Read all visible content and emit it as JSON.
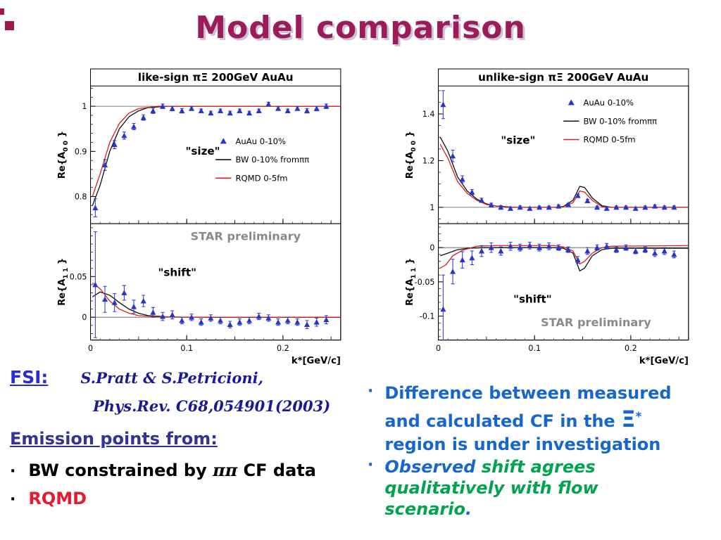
{
  "slide": {
    "title": "Model comparison"
  },
  "colors": {
    "title": "#9e1b5a",
    "fsi_blue": "#2b2bd4",
    "ref_navy": "#1a1a96",
    "emission": "#333392",
    "rqmd": "#e8192c",
    "right_blue": "#1566cf",
    "green": "#00a34e",
    "data_blue": "#2a35c8",
    "bw_black": "#111111",
    "rqmd_line": "#d42020",
    "star_gray": "#8a8a8a"
  },
  "left_text": {
    "fsi_label": "FSI:",
    "fsi_ref_line1": "S.Pratt & S.Petricioni,",
    "fsi_ref_line2": "Phys.Rev. C68,054901(2003)",
    "emission_heading": "Emission points from:",
    "bullet_char": "·",
    "bullet1_segments": [
      {
        "t": "BW constrained by "
      },
      {
        "t": "ππ",
        "serif": true
      },
      {
        "t": " CF data"
      }
    ],
    "bullet2": "RQMD"
  },
  "right_text": {
    "bullet_char": "·",
    "bullet1_segments": [
      {
        "t": "Difference between measured and calculated CF in the "
      },
      {
        "t": "Ξ",
        "big": true
      },
      {
        "t": "*",
        "sup": true
      },
      {
        "t": " region is under investigation"
      }
    ],
    "bullet2_segments": [
      {
        "t": "Observed ",
        "c": "#1566cf"
      },
      {
        "t": "shift agrees qualitatively with flow scenario",
        "c": "#00a34e"
      },
      {
        "t": ".",
        "c": "#1566cf"
      }
    ]
  },
  "chart_data": [
    {
      "type": "line",
      "title": "like-sign πΞ   200GeV AuAu",
      "xlabel": "k*[GeV/c]",
      "xlim": [
        0,
        0.26
      ],
      "xticks": [
        0,
        0.1,
        0.2
      ],
      "xtick_labels": [
        "0",
        "0.1",
        "0.2"
      ],
      "x_medium": 0.05,
      "x_minor": 0.01,
      "point_color": "#2a35c8",
      "panels": [
        {
          "ylabel_pre": "Re{A",
          "ylabel_sub": "0 0",
          "ylabel_post": " }",
          "ylim": [
            0.74,
            1.045
          ],
          "yticks": [
            0.8,
            0.9,
            1
          ],
          "ytick_labels": [
            "0.8",
            "0.9",
            "1"
          ],
          "y_minor": 0.02,
          "ref_line": 1,
          "label": "\"size\"",
          "label_fx": 0.38,
          "label_fy": 0.5,
          "legend": {
            "fx": 0.5,
            "fy": 0.36,
            "items": [
              {
                "marker": "triangle",
                "color": "#2a35c8",
                "label": "AuAu 0-10%"
              },
              {
                "marker": "line",
                "color": "#111111",
                "label": "BW 0-10%  fromππ"
              },
              {
                "marker": "line",
                "color": "#d42020",
                "label": "RQMD 0-5fm"
              }
            ]
          },
          "points": {
            "x": [
              0.005,
              0.015,
              0.025,
              0.035,
              0.045,
              0.055,
              0.065,
              0.075,
              0.085,
              0.095,
              0.105,
              0.115,
              0.125,
              0.135,
              0.145,
              0.155,
              0.165,
              0.175,
              0.185,
              0.195,
              0.205,
              0.215,
              0.225,
              0.235,
              0.245
            ],
            "y": [
              0.775,
              0.87,
              0.915,
              0.935,
              0.955,
              0.975,
              0.99,
              1.0,
              0.995,
              0.99,
              0.995,
              0.99,
              0.985,
              0.99,
              0.985,
              0.99,
              0.985,
              0.99,
              1.005,
              0.995,
              0.99,
              0.995,
              0.99,
              0.995,
              1.0
            ],
            "err": [
              0.02,
              0.012,
              0.009,
              0.008,
              0.007,
              0.006,
              0.006,
              0.005,
              0.005,
              0.005,
              0.004,
              0.004,
              0.004,
              0.004,
              0.004,
              0.004,
              0.004,
              0.004,
              0.004,
              0.004,
              0.004,
              0.004,
              0.005,
              0.005,
              0.005
            ]
          },
          "lines": [
            {
              "name": "BW 0-10%",
              "color": "#111111",
              "x": [
                0.002,
                0.01,
                0.02,
                0.03,
                0.04,
                0.05,
                0.06,
                0.08,
                0.1,
                0.26
              ],
              "y": [
                0.78,
                0.825,
                0.9,
                0.95,
                0.977,
                0.99,
                0.997,
                1.0,
                1.0,
                1.0
              ]
            },
            {
              "name": "RQMD 0-5fm",
              "color": "#d42020",
              "x": [
                0.002,
                0.01,
                0.02,
                0.03,
                0.04,
                0.05,
                0.07,
                0.26
              ],
              "y": [
                0.8,
                0.85,
                0.92,
                0.962,
                0.985,
                0.995,
                1.0,
                1.0
              ]
            }
          ]
        },
        {
          "ylabel_pre": "Re{A",
          "ylabel_sub": "1 1",
          "ylabel_post": " }",
          "ylim": [
            -0.028,
            0.115
          ],
          "yticks": [
            0,
            0.05
          ],
          "ytick_labels": [
            "0",
            "0.05"
          ],
          "y_minor": 0.01,
          "ref_line": 0,
          "label": "\"shift\"",
          "label_fx": 0.27,
          "label_fy": 0.45,
          "watermark": {
            "text": "STAR preliminary",
            "fx": 0.62,
            "fy": 0.14
          },
          "points": {
            "x": [
              0.005,
              0.015,
              0.025,
              0.035,
              0.045,
              0.055,
              0.065,
              0.075,
              0.085,
              0.095,
              0.105,
              0.115,
              0.125,
              0.135,
              0.145,
              0.155,
              0.165,
              0.175,
              0.185,
              0.195,
              0.205,
              0.215,
              0.225,
              0.235,
              0.245
            ],
            "y": [
              0.04,
              0.022,
              0.018,
              0.03,
              0.013,
              0.02,
              0.006,
              0.001,
              0.003,
              -0.004,
              0.0,
              -0.006,
              -0.001,
              -0.004,
              -0.009,
              -0.006,
              -0.004,
              0.001,
              -0.001,
              -0.006,
              -0.004,
              -0.006,
              -0.009,
              -0.006,
              -0.003
            ],
            "err": [
              0.065,
              0.016,
              0.011,
              0.009,
              0.008,
              0.007,
              0.006,
              0.005,
              0.005,
              0.004,
              0.004,
              0.004,
              0.004,
              0.004,
              0.004,
              0.004,
              0.004,
              0.004,
              0.004,
              0.004,
              0.004,
              0.004,
              0.005,
              0.005,
              0.005
            ]
          },
          "lines": [
            {
              "name": "BW 0-10%",
              "color": "#111111",
              "x": [
                0.002,
                0.01,
                0.02,
                0.03,
                0.04,
                0.05,
                0.06,
                0.08,
                0.1,
                0.26
              ],
              "y": [
                0.025,
                0.031,
                0.027,
                0.018,
                0.01,
                0.005,
                0.002,
                0.0005,
                0,
                0
              ]
            },
            {
              "name": "RQMD 0-5fm",
              "color": "#d42020",
              "x": [
                0.002,
                0.01,
                0.02,
                0.03,
                0.04,
                0.05,
                0.07,
                0.1,
                0.26
              ],
              "y": [
                0.042,
                0.035,
                0.02,
                0.01,
                0.005,
                0.002,
                0.0005,
                0,
                0
              ]
            }
          ]
        }
      ]
    },
    {
      "type": "line",
      "title": "unlike-sign πΞ   200GeV AuAu",
      "xlabel": "k*[GeV/c]",
      "xlim": [
        0,
        0.26
      ],
      "xticks": [
        0,
        0.1,
        0.2
      ],
      "xtick_labels": [
        "0",
        "0.1",
        "0.2"
      ],
      "x_medium": 0.05,
      "x_minor": 0.01,
      "point_color": "#2a35c8",
      "panels": [
        {
          "ylabel_pre": "Re{A",
          "ylabel_sub": "0 0",
          "ylabel_post": " }",
          "ylim": [
            0.93,
            1.52
          ],
          "yticks": [
            1,
            1.2,
            1.4
          ],
          "ytick_labels": [
            "1",
            "1.2",
            "1.4"
          ],
          "y_minor": 0.05,
          "ref_line": 1,
          "label": "\"size\"",
          "label_fx": 0.25,
          "label_fy": 0.42,
          "legend": {
            "fx": 0.5,
            "fy": 0.08,
            "items": [
              {
                "marker": "triangle",
                "color": "#2a35c8",
                "label": "AuAu 0-10%"
              },
              {
                "marker": "line",
                "color": "#111111",
                "label": "BW 0-10%  fromππ"
              },
              {
                "marker": "line",
                "color": "#d42020",
                "label": "RQMD 0-5fm"
              }
            ]
          },
          "points": {
            "x": [
              0.005,
              0.015,
              0.025,
              0.035,
              0.045,
              0.055,
              0.065,
              0.075,
              0.085,
              0.095,
              0.105,
              0.115,
              0.125,
              0.135,
              0.145,
              0.155,
              0.165,
              0.175,
              0.185,
              0.195,
              0.205,
              0.215,
              0.225,
              0.235,
              0.245
            ],
            "y": [
              1.44,
              1.22,
              1.12,
              1.065,
              1.03,
              1.01,
              1.0,
              0.995,
              1.0,
              0.995,
              1.0,
              1.0,
              1.005,
              1.012,
              1.05,
              1.028,
              1.0,
              0.995,
              1.0,
              1.0,
              0.995,
              1.0,
              1.005,
              1.0,
              1.0
            ],
            "err": [
              0.06,
              0.025,
              0.015,
              0.011,
              0.009,
              0.008,
              0.007,
              0.006,
              0.006,
              0.005,
              0.005,
              0.005,
              0.005,
              0.005,
              0.006,
              0.006,
              0.005,
              0.005,
              0.005,
              0.005,
              0.005,
              0.005,
              0.005,
              0.005,
              0.006
            ]
          },
          "lines": [
            {
              "name": "BW 0-10%",
              "color": "#111111",
              "x": [
                0.002,
                0.01,
                0.02,
                0.03,
                0.04,
                0.05,
                0.06,
                0.08,
                0.1,
                0.12,
                0.13,
                0.14,
                0.147,
                0.152,
                0.16,
                0.17,
                0.18,
                0.26
              ],
              "y": [
                1.3,
                1.24,
                1.13,
                1.07,
                1.035,
                1.015,
                1.005,
                1.0,
                1.0,
                1.0,
                1.004,
                1.03,
                1.09,
                1.085,
                1.04,
                1.007,
                1.0,
                1.0
              ]
            },
            {
              "name": "RQMD 0-5fm",
              "color": "#d42020",
              "x": [
                0.002,
                0.01,
                0.02,
                0.03,
                0.04,
                0.05,
                0.07,
                0.1,
                0.12,
                0.13,
                0.14,
                0.147,
                0.152,
                0.16,
                0.17,
                0.18,
                0.26
              ],
              "y": [
                1.27,
                1.21,
                1.11,
                1.06,
                1.03,
                1.012,
                1.0,
                1.0,
                1.0,
                1.003,
                1.02,
                1.07,
                1.065,
                1.03,
                1.003,
                1.0,
                1.0
              ]
            }
          ]
        },
        {
          "ylabel_pre": "Re{A",
          "ylabel_sub": "1 1",
          "ylabel_post": " }",
          "ylim": [
            -0.135,
            0.035
          ],
          "yticks": [
            -0.1,
            -0.05,
            0
          ],
          "ytick_labels": [
            "-0.1",
            "-0.05",
            "0"
          ],
          "y_minor": 0.01,
          "ref_line": 0,
          "label": "\"shift\"",
          "label_fx": 0.3,
          "label_fy": 0.68,
          "watermark": {
            "text": "STAR preliminary",
            "fx": 0.63,
            "fy": 0.88
          },
          "points": {
            "x": [
              0.005,
              0.015,
              0.025,
              0.035,
              0.045,
              0.055,
              0.065,
              0.075,
              0.085,
              0.095,
              0.105,
              0.115,
              0.125,
              0.135,
              0.145,
              0.155,
              0.165,
              0.175,
              0.185,
              0.195,
              0.205,
              0.215,
              0.225,
              0.235,
              0.245
            ],
            "y": [
              -0.09,
              -0.035,
              -0.018,
              -0.015,
              -0.005,
              0.0,
              -0.005,
              0.002,
              0.0,
              0.003,
              0.0,
              0.002,
              0.0,
              -0.003,
              -0.018,
              -0.005,
              0.0,
              0.002,
              -0.003,
              0.0,
              -0.005,
              -0.003,
              -0.008,
              -0.005,
              -0.01
            ],
            "err": [
              0.05,
              0.018,
              0.012,
              0.01,
              0.008,
              0.007,
              0.006,
              0.006,
              0.005,
              0.005,
              0.005,
              0.005,
              0.004,
              0.004,
              0.005,
              0.005,
              0.004,
              0.004,
              0.004,
              0.004,
              0.004,
              0.004,
              0.005,
              0.005,
              0.005
            ]
          },
          "lines": [
            {
              "name": "BW 0-10%",
              "color": "#111111",
              "x": [
                0.002,
                0.01,
                0.02,
                0.03,
                0.05,
                0.1,
                0.12,
                0.13,
                0.14,
                0.147,
                0.152,
                0.16,
                0.17,
                0.18,
                0.26
              ],
              "y": [
                -0.012,
                -0.008,
                -0.003,
                -0.001,
                0,
                0,
                0,
                -0.001,
                -0.008,
                -0.034,
                -0.03,
                -0.012,
                -0.003,
                -0.001,
                -0.001
              ]
            },
            {
              "name": "RQMD 0-5fm",
              "color": "#d42020",
              "x": [
                0.002,
                0.008,
                0.015,
                0.025,
                0.04,
                0.06,
                0.1,
                0.12,
                0.13,
                0.14,
                0.147,
                0.152,
                0.16,
                0.17,
                0.18,
                0.26
              ],
              "y": [
                -0.03,
                -0.025,
                -0.012,
                -0.004,
                0.002,
                0.003,
                0.003,
                0.003,
                0.001,
                -0.005,
                -0.024,
                -0.02,
                -0.008,
                0.0,
                0.002,
                0.003
              ]
            }
          ]
        }
      ]
    }
  ]
}
